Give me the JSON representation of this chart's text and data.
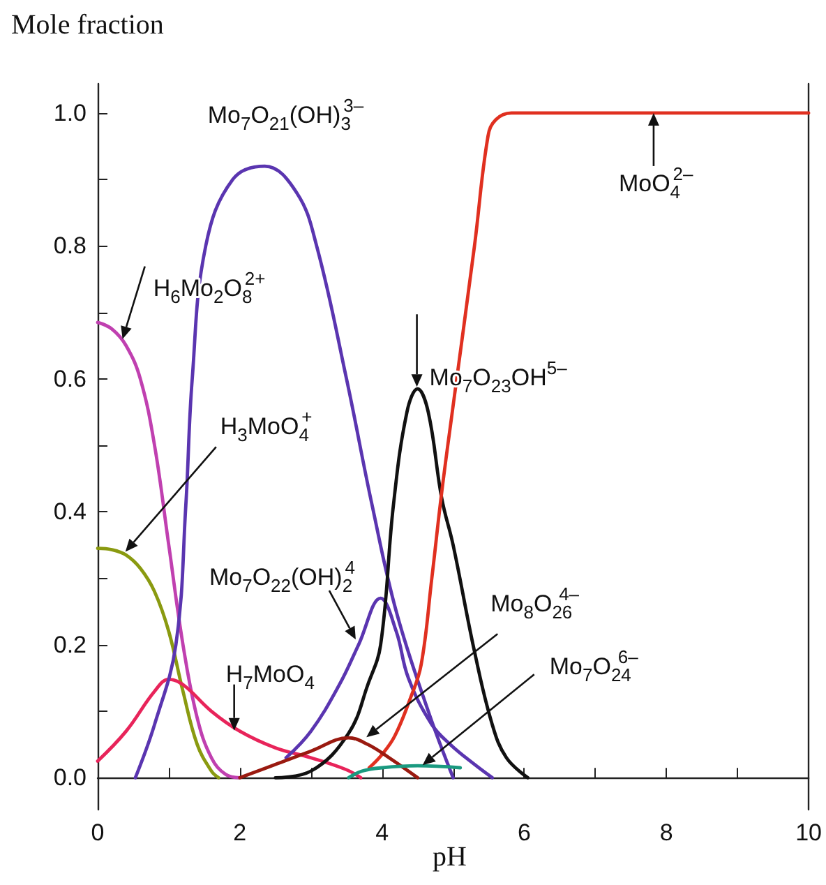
{
  "chart_data": {
    "type": "line",
    "ylabel": "Mole fraction",
    "xlabel": "pH",
    "xlim": [
      0,
      10
    ],
    "ylim": [
      -0.048,
      1.044
    ],
    "xticks": [
      0,
      {
        "value": 1,
        "label": null
      },
      2,
      {
        "value": 3,
        "label": null
      },
      4,
      {
        "value": 5,
        "label": null
      },
      6,
      {
        "value": 7,
        "label": null
      },
      8,
      {
        "value": 9,
        "label": null
      },
      10
    ],
    "yticks": [
      {
        "value": 0,
        "label": "0.0"
      },
      {
        "value": 0.1,
        "label": null
      },
      {
        "value": 0.2,
        "label": "0.2"
      },
      {
        "value": 0.3,
        "label": null
      },
      {
        "value": 0.4,
        "label": "0.4"
      },
      {
        "value": 0.5,
        "label": null
      },
      {
        "value": 0.6,
        "label": "0.6"
      },
      {
        "value": 0.7,
        "label": null
      },
      {
        "value": 0.8,
        "label": "0.8"
      },
      {
        "value": 0.9,
        "label": null
      },
      {
        "value": 1.0,
        "label": "1.0"
      }
    ],
    "grid": false,
    "marker": "none",
    "line_style": "solid",
    "series": [
      {
        "color": "#c040b0",
        "x": [
          0,
          0.2,
          0.4,
          0.6,
          0.8,
          1.0,
          1.2,
          1.4,
          1.6,
          1.8,
          2.0
        ],
        "values": [
          0.685,
          0.675,
          0.65,
          0.6,
          0.5,
          0.35,
          0.2,
          0.09,
          0.03,
          0.005,
          0
        ]
      },
      {
        "color": "#8a9a10",
        "x": [
          0,
          0.2,
          0.4,
          0.6,
          0.8,
          1.0,
          1.2,
          1.4,
          1.6,
          1.7
        ],
        "values": [
          0.345,
          0.343,
          0.335,
          0.315,
          0.28,
          0.22,
          0.13,
          0.05,
          0.01,
          0
        ]
      },
      {
        "color": "#e8245a",
        "x": [
          0,
          0.4,
          0.8,
          1.0,
          1.2,
          1.6,
          2.0,
          2.5,
          3.0,
          3.5,
          3.7
        ],
        "values": [
          0.025,
          0.07,
          0.13,
          0.148,
          0.14,
          0.1,
          0.07,
          0.045,
          0.03,
          0.012,
          0
        ]
      },
      {
        "color": "#5a35b0",
        "x": [
          0.53,
          0.8,
          1.1,
          1.24,
          1.33,
          1.52,
          1.9,
          2.35,
          2.8,
          3.08,
          3.5,
          3.86,
          4.2,
          4.65,
          5.0
        ],
        "values": [
          0,
          0.08,
          0.2,
          0.41,
          0.6,
          0.8,
          0.9,
          0.92,
          0.88,
          0.8,
          0.6,
          0.41,
          0.25,
          0.1,
          0
        ]
      },
      {
        "color": "#5a35b0",
        "x": [
          2.65,
          3.0,
          3.4,
          3.67,
          3.98,
          4.2,
          4.37,
          4.7,
          4.96,
          5.3,
          5.55
        ],
        "values": [
          0.03,
          0.07,
          0.14,
          0.2,
          0.27,
          0.22,
          0.15,
          0.08,
          0.05,
          0.02,
          0
        ]
      },
      {
        "color": "#111111",
        "x": [
          2.5,
          3.0,
          3.53,
          3.8,
          3.98,
          4.16,
          4.35,
          4.5,
          4.65,
          4.84,
          5.0,
          5.3,
          5.55,
          5.75,
          6.05
        ],
        "values": [
          0,
          0.01,
          0.067,
          0.14,
          0.2,
          0.41,
          0.55,
          0.585,
          0.55,
          0.42,
          0.35,
          0.19,
          0.08,
          0.03,
          0
        ]
      },
      {
        "color": "#e03020",
        "x": [
          3.82,
          4.0,
          4.18,
          4.4,
          4.55,
          4.7,
          4.84,
          5.0,
          5.3,
          5.49,
          5.6,
          5.82,
          7,
          8,
          10
        ],
        "values": [
          0.015,
          0.035,
          0.063,
          0.12,
          0.17,
          0.3,
          0.43,
          0.56,
          0.8,
          0.965,
          0.99,
          1.0,
          1.0,
          1.0,
          1.0
        ]
      },
      {
        "color": "#9a1a10",
        "x": [
          2.0,
          2.5,
          3.0,
          3.53,
          3.8,
          4.1,
          4.5
        ],
        "values": [
          0,
          0.02,
          0.04,
          0.06,
          0.05,
          0.03,
          0
        ]
      },
      {
        "color": "#1a9a80",
        "x": [
          3.53,
          3.72,
          4.0,
          4.5,
          5.1
        ],
        "values": [
          0,
          0.01,
          0.015,
          0.018,
          0.015
        ]
      }
    ],
    "annotations": [
      {
        "text": "Mo$_{7}$O$_{21}$(OH)$_{3}$$^{3–}$",
        "x": 2.35,
        "y": 0.92
      },
      {
        "text": "H$_{6}$Mo$_{2}$O$_{8}$$^{2+}$",
        "x": 0.35,
        "y": 0.66
      },
      {
        "text": "H$_{3}$MoO$_{4}$$^{+}$",
        "x": 0.39,
        "y": 0.34
      },
      {
        "text": "H$_{7}$MoO$_{4}$",
        "x": 1.92,
        "y": 0.071
      },
      {
        "text": "Mo$_{7}$O$_{22}$(OH)$_{2}$$^{4}$",
        "x": 3.63,
        "y": 0.208
      },
      {
        "text": "Mo$_{7}$O$_{23}$OH$^{5–}$",
        "x": 4.49,
        "y": 0.588
      },
      {
        "text": "MoO$_{4}$$^{2–}$",
        "x": 7.82,
        "y": 1.0
      },
      {
        "text": "Mo$_{8}$O$_{26}$$^{4–}$",
        "x": 3.78,
        "y": 0.061
      },
      {
        "text": "Mo$_{7}$O$_{24}$$^{6–}$",
        "x": 4.57,
        "y": 0.019
      }
    ]
  }
}
